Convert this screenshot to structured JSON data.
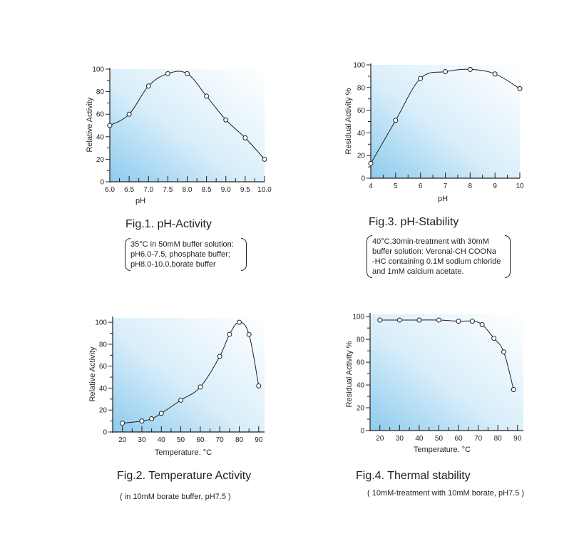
{
  "chart_data": [
    {
      "type": "line",
      "title": "Fig.1. pH-Activity",
      "xlabel": "pH",
      "ylabel": "Relative Activity",
      "xlim": [
        6.0,
        10.0
      ],
      "ylim": [
        0,
        100
      ],
      "xticks": [
        "6.0",
        "6.5",
        "7.0",
        "7.5",
        "8.0",
        "8.5",
        "9.0",
        "9.5",
        "10.0"
      ],
      "yticks": [
        "0",
        "20",
        "40",
        "60",
        "80",
        "100"
      ],
      "x": [
        6.0,
        6.5,
        7.0,
        7.5,
        8.0,
        8.5,
        9.0,
        9.5,
        10.0
      ],
      "y": [
        50,
        60,
        85,
        96,
        96,
        76,
        55,
        39,
        20
      ],
      "note": [
        "35°C in 50mM buffer solution:",
        "pH6.0-7.5, phosphate buffer;",
        "pH8.0-10.0,borate buffer"
      ]
    },
    {
      "type": "line",
      "title": "Fig.2. Temperature Activity",
      "xlabel": "Temperature. °C",
      "ylabel": "Relative Activity",
      "xlim": [
        15,
        93
      ],
      "ylim": [
        0,
        104
      ],
      "xticks": [
        "20",
        "30",
        "40",
        "50",
        "60",
        "70",
        "80",
        "90"
      ],
      "yticks": [
        "0",
        "20",
        "40",
        "60",
        "80",
        "100"
      ],
      "x": [
        20,
        30,
        35,
        40,
        50,
        60,
        70,
        75,
        80,
        85,
        90
      ],
      "y": [
        8,
        10,
        12,
        17,
        29,
        41,
        69,
        89,
        100,
        89,
        42
      ],
      "note": [
        "( in 10mM borate buffer, pH7.5 )"
      ]
    },
    {
      "type": "line",
      "title": "Fig.3. pH-Stability",
      "xlabel": "pH",
      "ylabel": "Residual Activity %",
      "xlim": [
        4,
        10
      ],
      "ylim": [
        0,
        100
      ],
      "xticks": [
        "4",
        "5",
        "6",
        "7",
        "8",
        "9",
        "10"
      ],
      "yticks": [
        "0",
        "20",
        "40",
        "60",
        "80",
        "100"
      ],
      "x": [
        4,
        5,
        6,
        7,
        8,
        9,
        10
      ],
      "y": [
        13,
        51,
        88,
        94,
        96,
        92,
        79
      ],
      "note": [
        "40°C,30min-treatment with 30mM",
        "buffer solution: Veronal-CH COONa",
        "-HC containing 0.1M sodium chloride",
        "and 1mM calcium acetate."
      ]
    },
    {
      "type": "line",
      "title": "Fig.4. Thermal stability",
      "xlabel": "Temperature. °C",
      "ylabel": "Residual Activity %",
      "xlim": [
        15,
        93
      ],
      "ylim": [
        0,
        102
      ],
      "xticks": [
        "20",
        "30",
        "40",
        "50",
        "60",
        "70",
        "80",
        "90"
      ],
      "yticks": [
        "0",
        "20",
        "40",
        "60",
        "80",
        "100"
      ],
      "x": [
        20,
        30,
        40,
        50,
        60,
        67,
        72,
        78,
        83,
        88
      ],
      "y": [
        97,
        97,
        97,
        97,
        96,
        96,
        93,
        81,
        69,
        36
      ],
      "note": [
        "( 10mM-treatment with 10mM borate, pH7.5 )"
      ]
    }
  ],
  "colors": {
    "gradient_light": "#ffffff",
    "gradient_dark": "#8ecbee",
    "line": "#231f20"
  }
}
